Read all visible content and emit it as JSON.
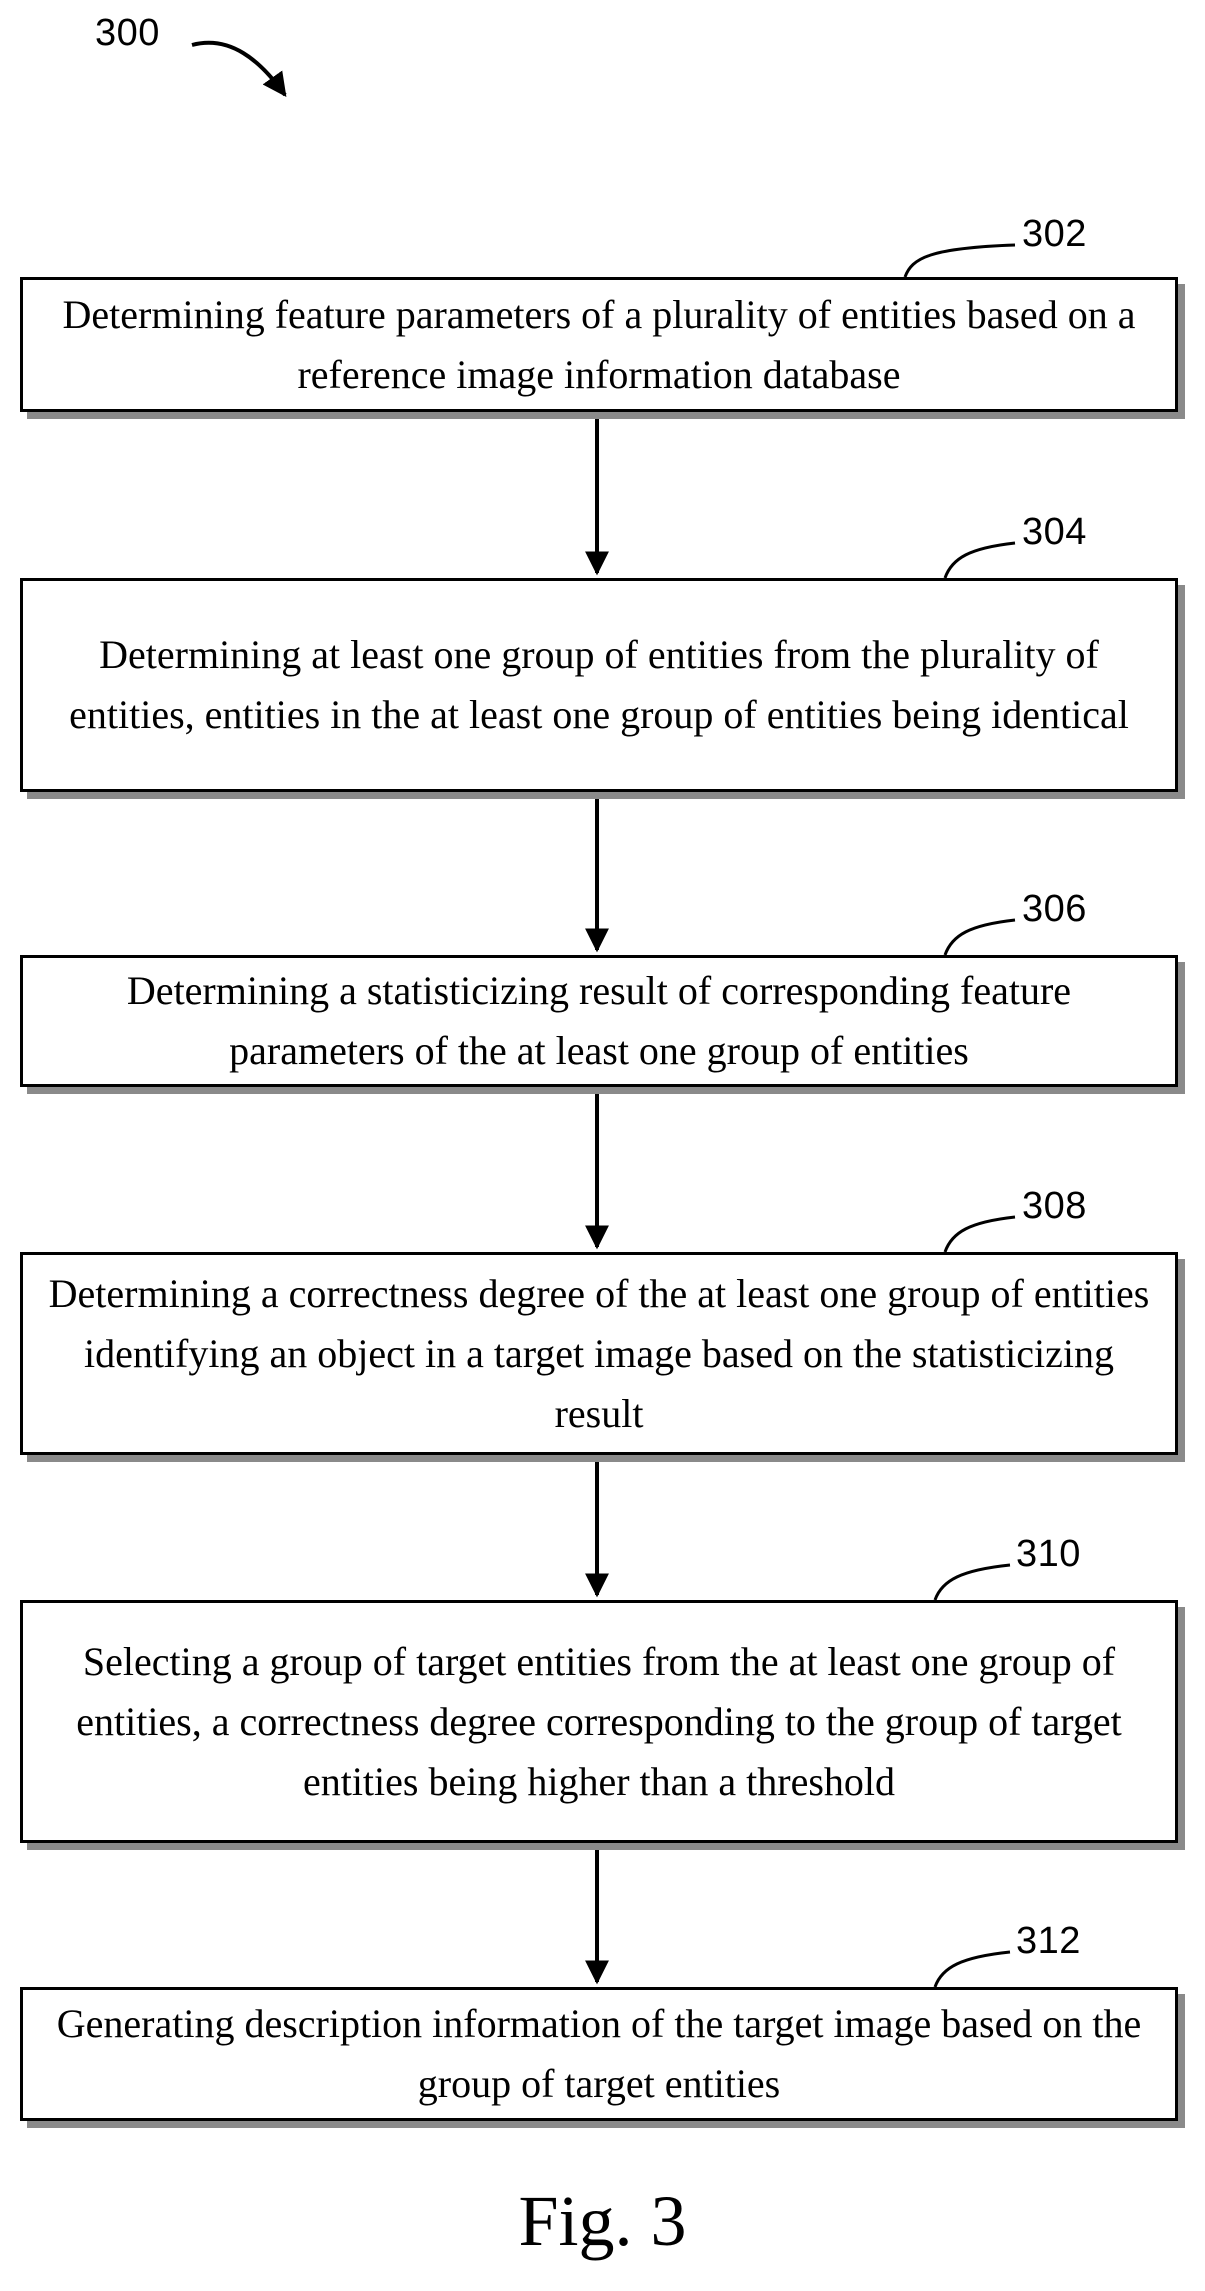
{
  "figure": {
    "number": "300",
    "caption": "Fig. 3"
  },
  "steps": [
    {
      "ref": "302",
      "text": "Determining feature parameters of a plurality of entities based on a reference image information database"
    },
    {
      "ref": "304",
      "text": "Determining at least one group of entities from the plurality of entities, entities in the at least one group of entities being identical"
    },
    {
      "ref": "306",
      "text": "Determining a statisticizing result of corresponding feature parameters of the at least one group of entities"
    },
    {
      "ref": "308",
      "text": "Determining a correctness degree of the at least one group of entities identifying an object in a target image based on the statisticizing result"
    },
    {
      "ref": "310",
      "text": "Selecting a group of target entities from the at least one group of entities, a correctness degree corresponding to the group of target entities being higher than a threshold"
    },
    {
      "ref": "312",
      "text": "Generating description information of the target image based on the group of target entities"
    }
  ]
}
